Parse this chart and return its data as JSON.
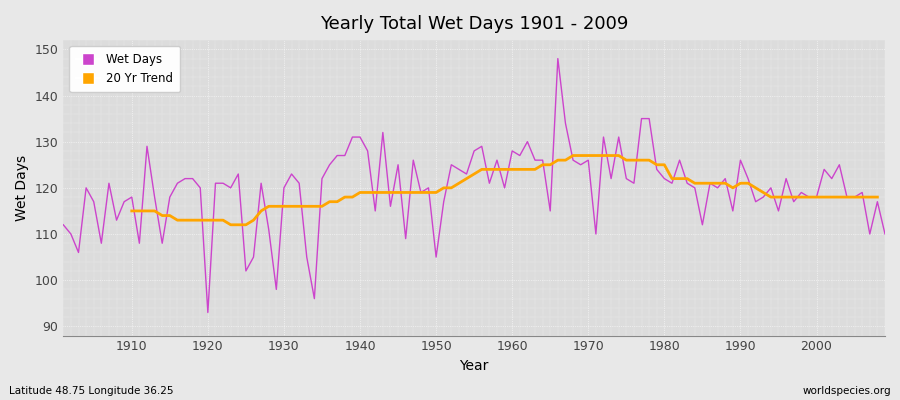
{
  "title": "Yearly Total Wet Days 1901 - 2009",
  "xlabel": "Year",
  "ylabel": "Wet Days",
  "footnote_left": "Latitude 48.75 Longitude 36.25",
  "footnote_right": "worldspecies.org",
  "wet_days_color": "#CC44CC",
  "trend_color": "#FFA500",
  "bg_color": "#E8E8E8",
  "plot_bg_color": "#DCDCDC",
  "ylim": [
    88,
    152
  ],
  "xlim": [
    1901,
    2009
  ],
  "yticks": [
    90,
    100,
    110,
    120,
    130,
    140,
    150
  ],
  "years": [
    1901,
    1902,
    1903,
    1904,
    1905,
    1906,
    1907,
    1908,
    1909,
    1910,
    1911,
    1912,
    1913,
    1914,
    1915,
    1916,
    1917,
    1918,
    1919,
    1920,
    1921,
    1922,
    1923,
    1924,
    1925,
    1926,
    1927,
    1928,
    1929,
    1930,
    1931,
    1932,
    1933,
    1934,
    1935,
    1936,
    1937,
    1938,
    1939,
    1940,
    1941,
    1942,
    1943,
    1944,
    1945,
    1946,
    1947,
    1948,
    1949,
    1950,
    1951,
    1952,
    1953,
    1954,
    1955,
    1956,
    1957,
    1958,
    1959,
    1960,
    1961,
    1962,
    1963,
    1964,
    1965,
    1966,
    1967,
    1968,
    1969,
    1970,
    1971,
    1972,
    1973,
    1974,
    1975,
    1976,
    1977,
    1978,
    1979,
    1980,
    1981,
    1982,
    1983,
    1984,
    1985,
    1986,
    1987,
    1988,
    1989,
    1990,
    1991,
    1992,
    1993,
    1994,
    1995,
    1996,
    1997,
    1998,
    1999,
    2000,
    2001,
    2002,
    2003,
    2004,
    2005,
    2006,
    2007,
    2008,
    2009
  ],
  "wet_days": [
    112,
    110,
    106,
    120,
    117,
    108,
    121,
    113,
    117,
    118,
    108,
    129,
    118,
    108,
    118,
    121,
    122,
    122,
    120,
    93,
    121,
    121,
    120,
    123,
    102,
    105,
    121,
    111,
    98,
    120,
    123,
    121,
    105,
    96,
    122,
    125,
    127,
    127,
    131,
    131,
    128,
    115,
    132,
    116,
    125,
    109,
    126,
    119,
    120,
    105,
    117,
    125,
    124,
    123,
    128,
    129,
    121,
    126,
    120,
    128,
    127,
    130,
    126,
    126,
    115,
    148,
    134,
    126,
    125,
    126,
    110,
    131,
    122,
    131,
    122,
    121,
    135,
    135,
    124,
    122,
    121,
    126,
    121,
    120,
    112,
    121,
    120,
    122,
    115,
    126,
    122,
    117,
    118,
    120,
    115,
    122,
    117,
    119,
    118,
    118,
    124,
    122,
    125,
    118,
    118,
    119,
    110,
    117,
    110
  ],
  "trend": [
    null,
    null,
    null,
    null,
    null,
    null,
    null,
    null,
    null,
    115,
    115,
    115,
    115,
    114,
    114,
    113,
    113,
    113,
    113,
    113,
    113,
    113,
    112,
    112,
    112,
    113,
    115,
    116,
    116,
    116,
    116,
    116,
    116,
    116,
    116,
    117,
    117,
    118,
    118,
    119,
    119,
    119,
    119,
    119,
    119,
    119,
    119,
    119,
    119,
    119,
    120,
    120,
    121,
    122,
    123,
    124,
    124,
    124,
    124,
    124,
    124,
    124,
    124,
    125,
    125,
    126,
    126,
    127,
    127,
    127,
    127,
    127,
    127,
    127,
    126,
    126,
    126,
    126,
    125,
    125,
    122,
    122,
    122,
    121,
    121,
    121,
    121,
    121,
    120,
    121,
    121,
    120,
    119,
    118,
    118,
    118,
    118,
    118,
    118,
    118,
    118,
    118,
    118,
    118,
    118,
    118,
    118,
    118,
    null
  ]
}
